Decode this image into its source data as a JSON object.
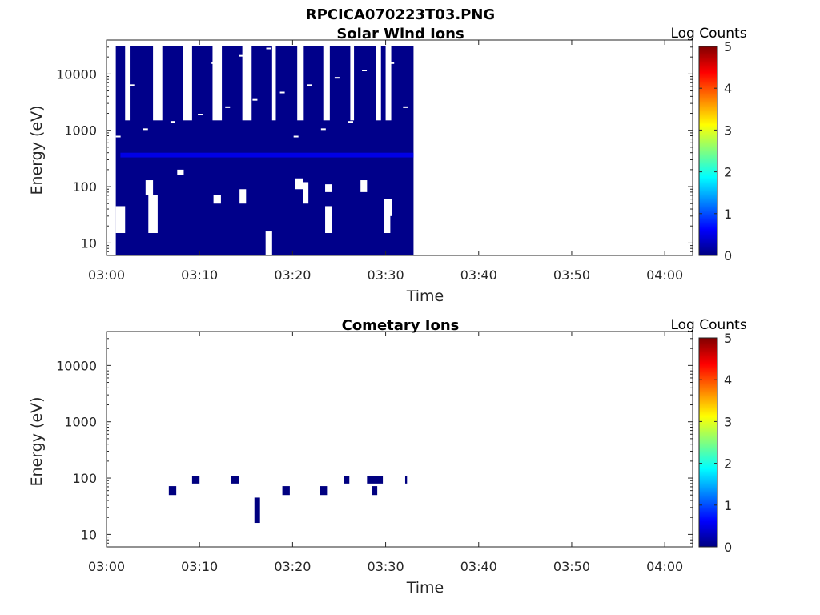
{
  "figure_title": "RPCICA070223T03.PNG",
  "chart_data": [
    {
      "type": "heatmap",
      "title": "Solar Wind Ions",
      "xlabel": "Time",
      "ylabel": "Energy (eV)",
      "yscale": "log",
      "xlim": [
        "03:00",
        "04:03"
      ],
      "ylim": [
        6,
        40000
      ],
      "xticks": [
        "03:00",
        "03:10",
        "03:20",
        "03:30",
        "03:40",
        "03:50",
        "04:00"
      ],
      "yticks": [
        "10",
        "100",
        "1000",
        "10000"
      ],
      "colorbar": {
        "label": "Log Counts",
        "range": [
          0,
          5
        ],
        "ticks": [
          "0",
          "1",
          "2",
          "3",
          "4",
          "5"
        ]
      },
      "data_extent": {
        "t_start": "03:01",
        "t_end": "03:33",
        "e_min": 6,
        "e_max": 31000
      },
      "level_background": 0.05,
      "sweeps_top_gaps": [
        [
          "03:02",
          "03:02.5"
        ],
        [
          "03:05",
          "03:06"
        ],
        [
          "03:08.2",
          "03:09.2"
        ],
        [
          "03:11.4",
          "03:12.4"
        ],
        [
          "03:14.6",
          "03:15.6"
        ],
        [
          "03:17.8",
          "03:18.2"
        ],
        [
          "03:20.5",
          "03:21.2"
        ],
        [
          "03:23.3",
          "03:24.0"
        ],
        [
          "03:26.2",
          "03:26.6"
        ],
        [
          "03:29.0",
          "03:29.5"
        ],
        [
          "03:30.0",
          "03:30.6"
        ]
      ],
      "gaps": [
        {
          "t": [
            "03:01",
            "03:02"
          ],
          "e": [
            15,
            45
          ]
        },
        {
          "t": [
            "03:04.5",
            "03:05.5"
          ],
          "e": [
            15,
            70
          ]
        },
        {
          "t": [
            "03:04.2",
            "03:05"
          ],
          "e": [
            70,
            130
          ]
        },
        {
          "t": [
            "03:07.6",
            "03:08.3"
          ],
          "e": [
            160,
            200
          ]
        },
        {
          "t": [
            "03:11.5",
            "03:12.3"
          ],
          "e": [
            50,
            70
          ]
        },
        {
          "t": [
            "03:14.3",
            "03:15"
          ],
          "e": [
            50,
            90
          ]
        },
        {
          "t": [
            "03:17.1",
            "03:17.8"
          ],
          "e": [
            6,
            16
          ]
        },
        {
          "t": [
            "03:20.3",
            "03:21.1"
          ],
          "e": [
            90,
            140
          ]
        },
        {
          "t": [
            "03:21.1",
            "03:21.7"
          ],
          "e": [
            50,
            120
          ]
        },
        {
          "t": [
            "03:23.5",
            "03:24.2"
          ],
          "e": [
            80,
            110
          ]
        },
        {
          "t": [
            "03:23.5",
            "03:24.2"
          ],
          "e": [
            15,
            45
          ]
        },
        {
          "t": [
            "03:27.3",
            "03:28"
          ],
          "e": [
            80,
            130
          ]
        },
        {
          "t": [
            "03:29.8",
            "03:30.5"
          ],
          "e": [
            15,
            45
          ]
        },
        {
          "t": [
            "03:29.8",
            "03:30.7"
          ],
          "e": [
            30,
            60
          ]
        }
      ],
      "highlights": [
        {
          "t": [
            "03:01.5",
            "03:33"
          ],
          "e": [
            330,
            400
          ],
          "level": 0.5
        }
      ]
    },
    {
      "type": "heatmap",
      "title": "Cometary Ions",
      "xlabel": "Time",
      "ylabel": "Energy (eV)",
      "yscale": "log",
      "xlim": [
        "03:00",
        "04:03"
      ],
      "ylim": [
        6,
        40000
      ],
      "xticks": [
        "03:00",
        "03:10",
        "03:20",
        "03:30",
        "03:40",
        "03:50",
        "04:00"
      ],
      "yticks": [
        "10",
        "100",
        "1000",
        "10000"
      ],
      "colorbar": {
        "label": "Log Counts",
        "range": [
          0,
          5
        ],
        "ticks": [
          "0",
          "1",
          "2",
          "3",
          "4",
          "5"
        ]
      },
      "cells": [
        {
          "t": [
            "03:06.7",
            "03:07.5"
          ],
          "e": [
            50,
            72
          ],
          "level": 0
        },
        {
          "t": [
            "03:09.2",
            "03:10"
          ],
          "e": [
            80,
            110
          ],
          "level": 0
        },
        {
          "t": [
            "03:13.4",
            "03:14.2"
          ],
          "e": [
            80,
            110
          ],
          "level": 0
        },
        {
          "t": [
            "03:15.9",
            "03:16.5"
          ],
          "e": [
            16,
            45
          ],
          "level": 0
        },
        {
          "t": [
            "03:18.9",
            "03:19.7"
          ],
          "e": [
            50,
            72
          ],
          "level": 0
        },
        {
          "t": [
            "03:22.9",
            "03:23.7"
          ],
          "e": [
            50,
            72
          ],
          "level": 0
        },
        {
          "t": [
            "03:25.5",
            "03:26.1"
          ],
          "e": [
            80,
            110
          ],
          "level": 0
        },
        {
          "t": [
            "03:28",
            "03:29.7"
          ],
          "e": [
            80,
            110
          ],
          "level": 0
        },
        {
          "t": [
            "03:28.5",
            "03:29.1"
          ],
          "e": [
            50,
            72
          ],
          "level": 0
        },
        {
          "t": [
            "03:32.1",
            "03:32.3"
          ],
          "e": [
            80,
            110
          ],
          "level": 0
        }
      ]
    }
  ]
}
